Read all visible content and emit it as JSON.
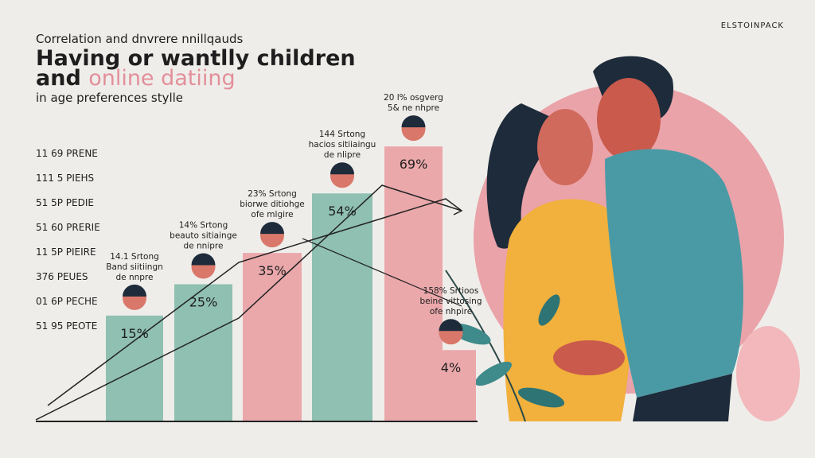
{
  "chart_data": {
    "type": "bar",
    "brand": "ELSTOINPACK",
    "kicker": "Correlation and dnvrere nnillqauds",
    "title": "Having or wantlly children",
    "title_line2_lead": "and",
    "title_line2_accent": "online datiing",
    "subtitle": "in age preferences stylle",
    "list": [
      "11 69 PRENE",
      "111 5 PIEHS",
      "51 5P PEDIE",
      "51 60 PRERIE",
      "11 5P PIEIRE",
      "376 PEUES",
      "01 6P PECHE",
      "51 95 PEOTE"
    ],
    "values": [
      15,
      25,
      35,
      54,
      69,
      4
    ],
    "value_labels": [
      "15%",
      "25%",
      "35%",
      "54%",
      "69%",
      "4%"
    ],
    "colors": [
      "#8fc0b2",
      "#8fc0b2",
      "#eaa8ab",
      "#8fc0b2",
      "#eaa8ab",
      "#eaa8ab"
    ],
    "annotations": [
      [
        "14.1 Srtong",
        "Band siitiingn",
        "de nnpre"
      ],
      [
        "14% Srtong",
        "beauto sitiainge",
        "de nnipre"
      ],
      [
        "23% Srtong",
        "biorwe ditiohge",
        "ofe mlgire"
      ],
      [
        "144 Srtong",
        "hacios sitiiaingu",
        "de nlipre"
      ],
      [
        "20 l% osgverg",
        "5& ne nhpre"
      ],
      [
        "158% Srtioos",
        "beine vittosing",
        "ofe nhpire"
      ]
    ]
  }
}
